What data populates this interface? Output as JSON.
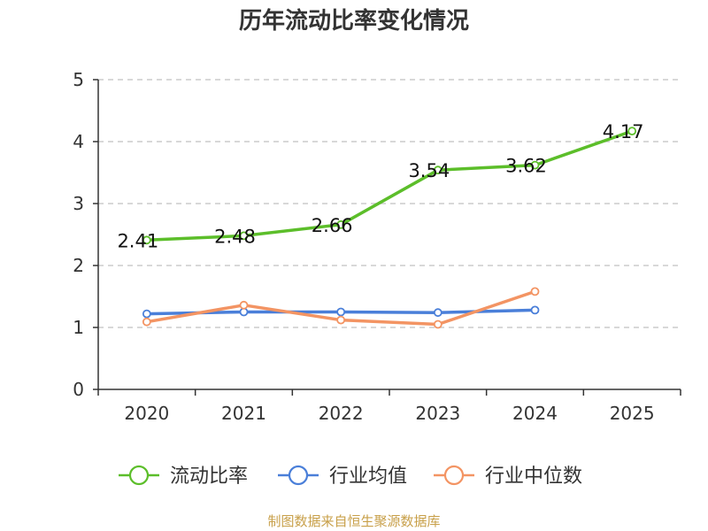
{
  "chart_data": {
    "type": "line",
    "title": "历年流动比率变化情况",
    "categories": [
      "2020",
      "2021",
      "2022",
      "2023",
      "2024",
      "2025"
    ],
    "ylim": [
      0,
      5
    ],
    "yticks": [
      "0",
      "1",
      "2",
      "3",
      "4",
      "5"
    ],
    "grid": true,
    "legend_position": "bottom",
    "series": [
      {
        "name": "流动比率",
        "color": "#5cbe2a",
        "values": [
          2.41,
          2.48,
          2.66,
          3.54,
          3.62,
          4.17
        ],
        "labels": [
          "2.41",
          "2.48",
          "2.66",
          "3.54",
          "3.62",
          "4.17"
        ]
      },
      {
        "name": "行业均值",
        "color": "#4a7fd9",
        "values": [
          1.22,
          1.25,
          1.25,
          1.24,
          1.28,
          null
        ]
      },
      {
        "name": "行业中位数",
        "color": "#f39463",
        "values": [
          1.09,
          1.36,
          1.12,
          1.05,
          1.58,
          null
        ]
      }
    ],
    "source": "制图数据来自恒生聚源数据库"
  }
}
